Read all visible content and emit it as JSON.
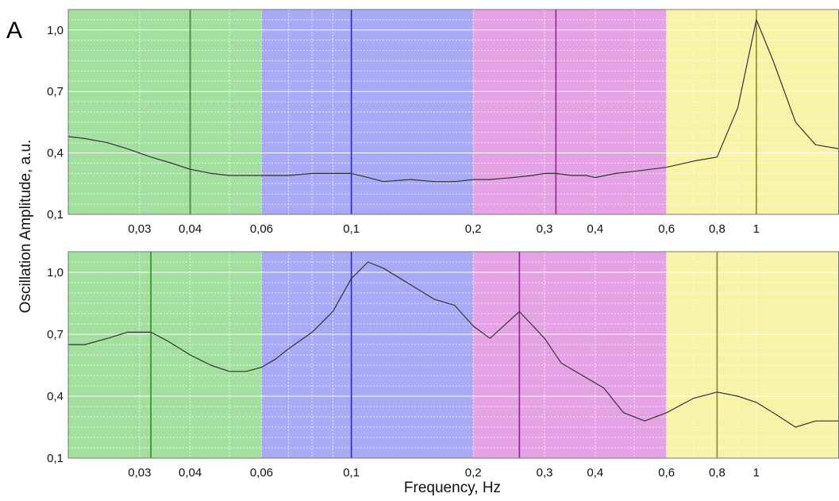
{
  "figure": {
    "panel_label": "A",
    "xlabel": "Frequency, Hz",
    "ylabel": "Oscillation Amplitude, a.u."
  },
  "colors": {
    "band_green": "#a3e0a0",
    "band_blue": "#a9aaf6",
    "band_pink": "#e5a2e5",
    "band_yellow": "#f7f4a8",
    "line_green": "#2d8a2d",
    "line_blue": "#2a2ab0",
    "line_purple": "#8a2a8a",
    "line_olive": "#8a8a2a",
    "trace": "#333333"
  },
  "chart_data": [
    {
      "type": "line",
      "xscale": "log",
      "xlim": [
        0.02,
        1.6
      ],
      "ylim": [
        0.1,
        1.1
      ],
      "grid": true,
      "xlabel": "",
      "ylabel": "",
      "x_ticks": [
        {
          "value": 0.03,
          "label": "0,03"
        },
        {
          "value": 0.04,
          "label": "0,04"
        },
        {
          "value": 0.06,
          "label": "0,06"
        },
        {
          "value": 0.1,
          "label": "0,1"
        },
        {
          "value": 0.2,
          "label": "0,2"
        },
        {
          "value": 0.3,
          "label": "0,3"
        },
        {
          "value": 0.4,
          "label": "0,4"
        },
        {
          "value": 0.6,
          "label": "0,6"
        },
        {
          "value": 0.8,
          "label": "0,8"
        },
        {
          "value": 1.0,
          "label": "1"
        }
      ],
      "y_ticks": [
        {
          "value": 0.1,
          "label": "0,1"
        },
        {
          "value": 0.4,
          "label": "0,4"
        },
        {
          "value": 0.7,
          "label": "0,7"
        },
        {
          "value": 1.0,
          "label": "1,0"
        }
      ],
      "bands": [
        {
          "from": 0.02,
          "to": 0.06,
          "color": "band_green"
        },
        {
          "from": 0.06,
          "to": 0.2,
          "color": "band_blue"
        },
        {
          "from": 0.2,
          "to": 0.6,
          "color": "band_pink"
        },
        {
          "from": 0.6,
          "to": 1.6,
          "color": "band_yellow"
        }
      ],
      "peak_lines": [
        {
          "x": 0.04,
          "color": "line_green"
        },
        {
          "x": 0.1,
          "color": "line_blue"
        },
        {
          "x": 0.32,
          "color": "line_purple"
        },
        {
          "x": 1.0,
          "color": "line_olive"
        }
      ],
      "series": [
        {
          "x": [
            0.02,
            0.022,
            0.025,
            0.028,
            0.032,
            0.036,
            0.04,
            0.045,
            0.05,
            0.055,
            0.06,
            0.07,
            0.08,
            0.09,
            0.1,
            0.11,
            0.12,
            0.14,
            0.16,
            0.18,
            0.2,
            0.22,
            0.25,
            0.28,
            0.3,
            0.32,
            0.35,
            0.38,
            0.4,
            0.45,
            0.5,
            0.6,
            0.7,
            0.8,
            0.9,
            1.0,
            1.1,
            1.25,
            1.4,
            1.6
          ],
          "y": [
            0.48,
            0.47,
            0.45,
            0.42,
            0.38,
            0.35,
            0.32,
            0.3,
            0.29,
            0.29,
            0.29,
            0.29,
            0.3,
            0.3,
            0.3,
            0.28,
            0.26,
            0.27,
            0.26,
            0.26,
            0.27,
            0.27,
            0.28,
            0.29,
            0.3,
            0.3,
            0.29,
            0.29,
            0.28,
            0.3,
            0.31,
            0.33,
            0.36,
            0.38,
            0.62,
            1.05,
            0.85,
            0.55,
            0.44,
            0.42
          ]
        }
      ]
    },
    {
      "type": "line",
      "xscale": "log",
      "xlim": [
        0.02,
        1.6
      ],
      "ylim": [
        0.1,
        1.1
      ],
      "grid": true,
      "xlabel": "Frequency, Hz",
      "ylabel": "",
      "x_ticks": [
        {
          "value": 0.03,
          "label": "0,03"
        },
        {
          "value": 0.04,
          "label": "0,04"
        },
        {
          "value": 0.06,
          "label": "0,06"
        },
        {
          "value": 0.1,
          "label": "0,1"
        },
        {
          "value": 0.2,
          "label": "0,2"
        },
        {
          "value": 0.3,
          "label": "0,3"
        },
        {
          "value": 0.4,
          "label": "0,4"
        },
        {
          "value": 0.6,
          "label": "0,6"
        },
        {
          "value": 0.8,
          "label": "0,8"
        },
        {
          "value": 1.0,
          "label": "1"
        }
      ],
      "y_ticks": [
        {
          "value": 0.1,
          "label": "0,1"
        },
        {
          "value": 0.4,
          "label": "0,4"
        },
        {
          "value": 0.7,
          "label": "0,7"
        },
        {
          "value": 1.0,
          "label": "1,0"
        }
      ],
      "bands": [
        {
          "from": 0.02,
          "to": 0.06,
          "color": "band_green"
        },
        {
          "from": 0.06,
          "to": 0.2,
          "color": "band_blue"
        },
        {
          "from": 0.2,
          "to": 0.6,
          "color": "band_pink"
        },
        {
          "from": 0.6,
          "to": 1.6,
          "color": "band_yellow"
        }
      ],
      "peak_lines": [
        {
          "x": 0.032,
          "color": "line_green"
        },
        {
          "x": 0.1,
          "color": "line_blue"
        },
        {
          "x": 0.26,
          "color": "line_purple"
        },
        {
          "x": 0.8,
          "color": "line_olive"
        }
      ],
      "series": [
        {
          "x": [
            0.02,
            0.022,
            0.025,
            0.028,
            0.03,
            0.032,
            0.035,
            0.04,
            0.045,
            0.05,
            0.055,
            0.06,
            0.065,
            0.07,
            0.08,
            0.09,
            0.1,
            0.11,
            0.12,
            0.14,
            0.16,
            0.18,
            0.2,
            0.22,
            0.26,
            0.3,
            0.33,
            0.38,
            0.42,
            0.47,
            0.53,
            0.6,
            0.7,
            0.8,
            0.9,
            1.0,
            1.1,
            1.25,
            1.4,
            1.6
          ],
          "y": [
            0.65,
            0.65,
            0.68,
            0.71,
            0.71,
            0.71,
            0.67,
            0.6,
            0.55,
            0.52,
            0.52,
            0.54,
            0.58,
            0.63,
            0.71,
            0.81,
            0.97,
            1.05,
            1.02,
            0.94,
            0.87,
            0.84,
            0.74,
            0.68,
            0.81,
            0.68,
            0.56,
            0.49,
            0.44,
            0.32,
            0.28,
            0.32,
            0.39,
            0.42,
            0.4,
            0.37,
            0.32,
            0.25,
            0.28,
            0.28
          ]
        }
      ]
    }
  ]
}
